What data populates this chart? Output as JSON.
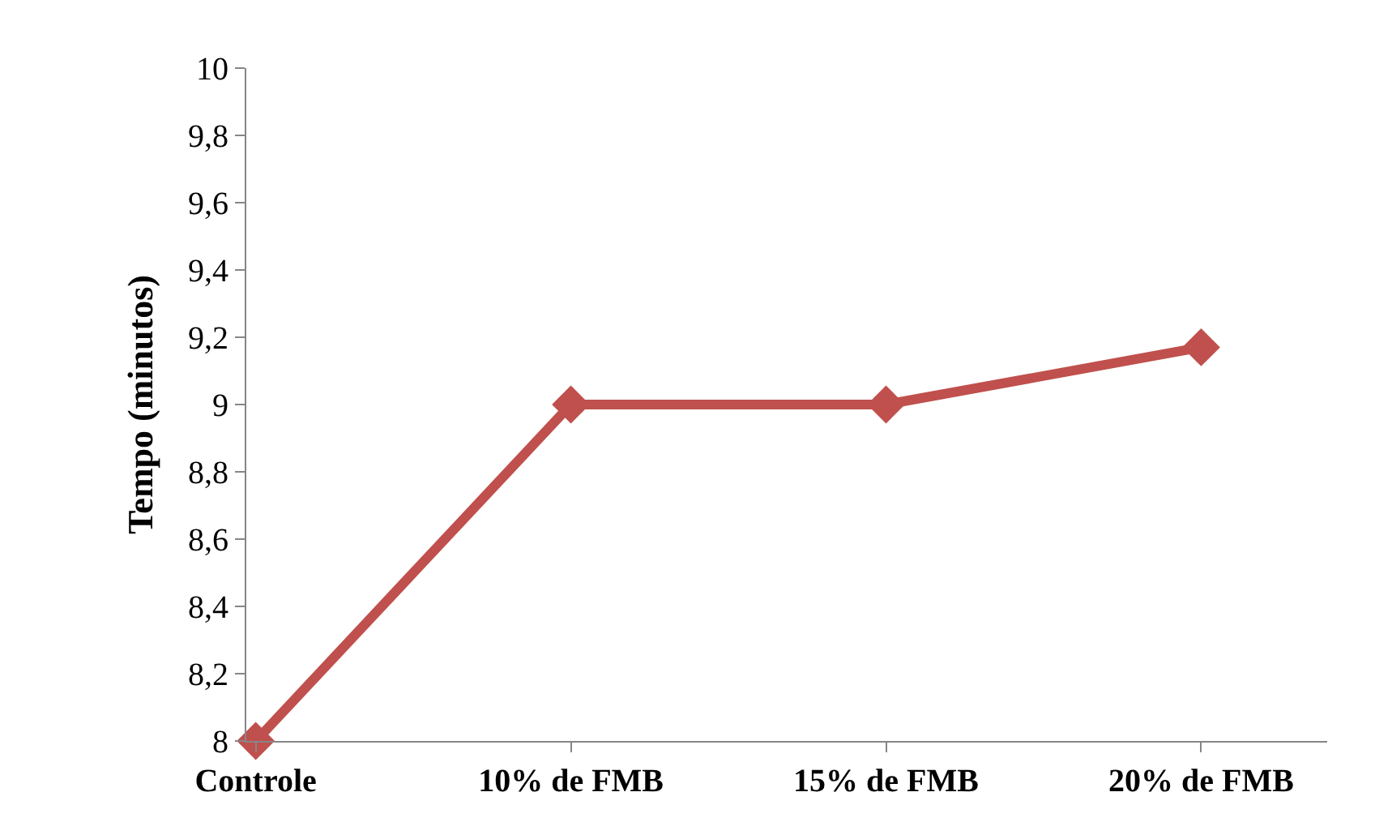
{
  "chart_data": {
    "type": "line",
    "ylabel": "Tempo (minutos)",
    "categories": [
      "Controle",
      "10% de FMB",
      "15% de FMB",
      "20% de FMB"
    ],
    "series": [
      {
        "color": "#c0504d",
        "values": [
          8,
          9,
          9,
          9.17
        ]
      }
    ],
    "ylim": [
      8,
      10
    ],
    "yticks": [
      8,
      {
        "value": 8.2,
        "label": "8,2"
      },
      {
        "value": 8.4,
        "label": "8,4"
      },
      {
        "value": 8.6,
        "label": "8,6"
      },
      {
        "value": 8.8,
        "label": "8,8"
      },
      9,
      {
        "value": 9.2,
        "label": "9,2"
      },
      {
        "value": 9.4,
        "label": "9,4"
      },
      {
        "value": 9.6,
        "label": "9,6"
      },
      {
        "value": 9.8,
        "label": "9,8"
      },
      10
    ],
    "marker": "diamond",
    "line_style": "solid"
  }
}
